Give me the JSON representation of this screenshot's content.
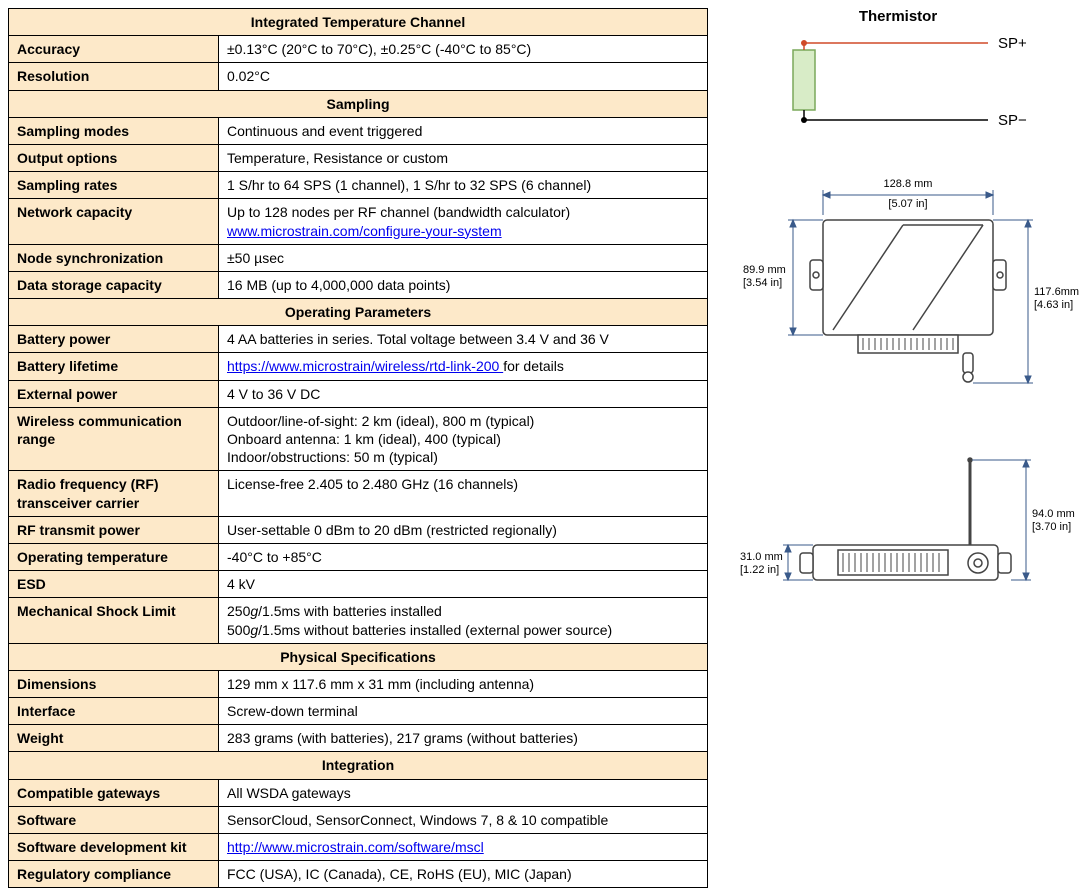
{
  "colors": {
    "header_bg": "#fde9c9",
    "border": "#000000",
    "link": "#0000ee",
    "thermistor_fill": "#d8ecc7",
    "thermistor_stroke": "#7aa85a",
    "node": "#d04a28",
    "dim_line": "#3a5a8a",
    "device_stroke": "#444444"
  },
  "sections": [
    {
      "title": "Integrated Temperature Channel",
      "rows": [
        {
          "param": "Accuracy",
          "value": "±0.13°C (20°C to 70°C), ±0.25°C (-40°C to 85°C)"
        },
        {
          "param": "Resolution",
          "value": "0.02°C"
        }
      ]
    },
    {
      "title": "Sampling",
      "rows": [
        {
          "param": "Sampling modes",
          "value": "Continuous and event triggered"
        },
        {
          "param": "Output options",
          "value": "Temperature, Resistance or custom"
        },
        {
          "param": "Sampling rates",
          "value": "1 S/hr to 64 SPS (1 channel), 1 S/hr to 32 SPS (6 channel)"
        },
        {
          "param": "Network capacity",
          "html": "Up to 128 nodes per RF channel (bandwidth calculator)<br><a href='#' data-name='link-configure-system' data-interactable='true'>www.microstrain.com/configure-your-system</a>"
        },
        {
          "param": "Node synchronization",
          "value": "±50 µsec"
        },
        {
          "param": "Data storage capacity",
          "value": "16 MB (up to 4,000,000 data points)"
        }
      ]
    },
    {
      "title": "Operating Parameters",
      "rows": [
        {
          "param": "Battery power",
          "value": "4 AA batteries in series. Total voltage between 3.4 V and 36 V"
        },
        {
          "param": "Battery lifetime",
          "html": "<a href='#' data-name='link-rtd-link-200' data-interactable='true'>https://www.microstrain/wireless/rtd-link-200 </a>for details"
        },
        {
          "param": "External power",
          "value": "4 V to 36 V DC"
        },
        {
          "param": "Wireless communication range",
          "html": "Outdoor/line-of-sight: 2 km (ideal), 800 m (typical)<br>Onboard antenna: 1 km (ideal), 400 (typical)<br>Indoor/obstructions: 50 m (typical)"
        },
        {
          "param": "Radio frequency (RF) transceiver carrier",
          "value": "License-free 2.405 to 2.480 GHz (16 channels)"
        },
        {
          "param": "RF transmit power",
          "value": "User-settable 0 dBm to 20 dBm (restricted regionally)"
        },
        {
          "param": "Operating temperature",
          "value": "-40°C to +85°C"
        },
        {
          "param": "ESD",
          "value": "4 kV"
        },
        {
          "param": "Mechanical Shock Limit",
          "html": "250<span class='italic'>g</span>/1.5ms with batteries installed<br>500<span class='italic'>g</span>/1.5ms without batteries installed (external power source)"
        }
      ]
    },
    {
      "title": "Physical Specifications",
      "rows": [
        {
          "param": "Dimensions",
          "value": "129 mm x 117.6 mm x 31 mm (including antenna)"
        },
        {
          "param": "Interface",
          "value": "Screw-down terminal"
        },
        {
          "param": "Weight",
          "value": "283 grams (with batteries), 217 grams (without batteries)"
        }
      ]
    },
    {
      "title": "Integration",
      "rows": [
        {
          "param": "Compatible gateways",
          "value": "All WSDA gateways"
        },
        {
          "param": "Software",
          "value": "SensorCloud, SensorConnect, Windows 7, 8 & 10 compatible"
        },
        {
          "param": "Software development kit",
          "html": "<a href='#' data-name='link-mscl' data-interactable='true'>http://www.microstrain.com/software/mscl</a>"
        },
        {
          "param": "Regulatory compliance",
          "value": "FCC (USA), IC (Canada), CE, RoHS (EU), MIC (Japan)"
        }
      ]
    }
  ],
  "diagrams": {
    "thermistor": {
      "title": "Thermistor",
      "sp_plus": "SP+",
      "sp_minus": "SP−"
    },
    "top_view": {
      "width_label": "128.8 mm",
      "width_in": "[5.07 in]",
      "height_label": "89.9 mm",
      "height_in": "[3.54 in]",
      "full_height_label": "117.6mm",
      "full_height_in": "[4.63 in]"
    },
    "side_view": {
      "depth_label": "31.0 mm",
      "depth_in": "[1.22 in]",
      "antenna_label": "94.0 mm",
      "antenna_in": "[3.70 in]"
    }
  }
}
